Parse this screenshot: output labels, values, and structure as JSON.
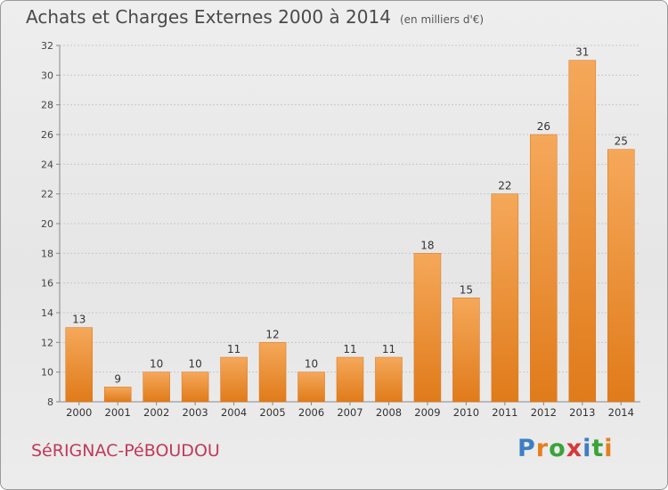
{
  "header": {
    "title": "Achats et Charges Externes 2000 à 2014",
    "unit": "(en milliers d'€)"
  },
  "footer": {
    "town": "SéRIGNAC-PéBOUDOU",
    "logo": "Proxiti",
    "logo_colors": [
      "#3d7fc2",
      "#e67f1e",
      "#3aa33a",
      "#d43a3a",
      "#3d7fc2",
      "#3aa33a",
      "#e67f1e"
    ]
  },
  "colors": {
    "bar_top": "#f5a85a",
    "bar_bottom": "#e07b1a",
    "grid": "#c8c8c8"
  },
  "chart_data": {
    "type": "bar",
    "title": "Achats et Charges Externes 2000 à 2014",
    "subtitle": "(en milliers d'€)",
    "categories": [
      "2000",
      "2001",
      "2002",
      "2003",
      "2004",
      "2005",
      "2006",
      "2007",
      "2008",
      "2009",
      "2010",
      "2011",
      "2012",
      "2013",
      "2014"
    ],
    "values": [
      13,
      9,
      10,
      10,
      11,
      12,
      10,
      11,
      11,
      18,
      15,
      22,
      26,
      31,
      25
    ],
    "ylim": [
      8,
      32
    ],
    "yticks": [
      8,
      10,
      12,
      14,
      16,
      18,
      20,
      22,
      24,
      26,
      28,
      30,
      32
    ],
    "grid": true,
    "xlabel": "",
    "ylabel": ""
  }
}
